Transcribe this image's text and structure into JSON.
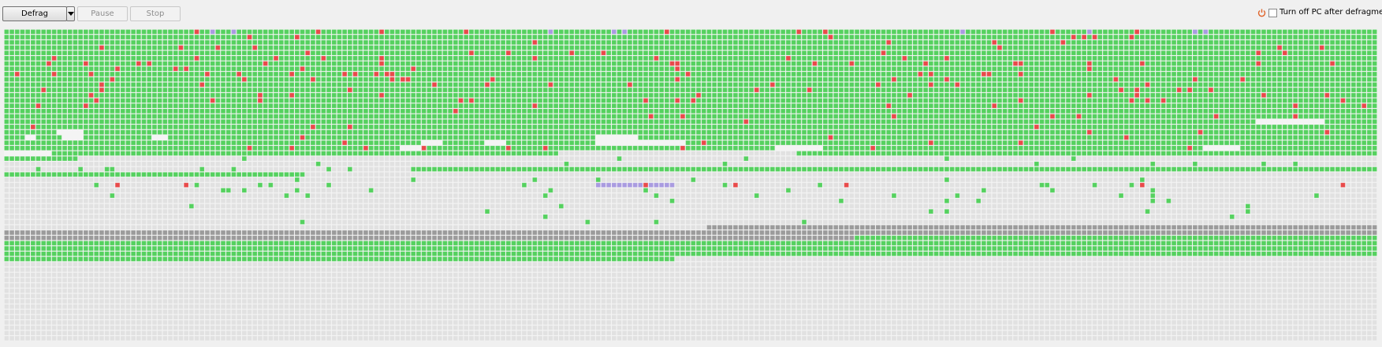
{
  "toolbar": {
    "defrag": "Defrag",
    "pause": "Pause",
    "stop": "Stop",
    "shutdown_option": "Turn off PC after defragmentation"
  }
}
